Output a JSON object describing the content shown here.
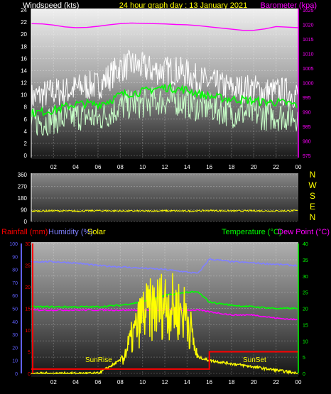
{
  "header": {
    "wind_label": "Windspeed (kts)",
    "date_title": "24 hour graph day : 13 January 2021",
    "baro_label": "Barometer (kpa)"
  },
  "colors": {
    "wind_label": "#ffffff",
    "title": "#ffff00",
    "baro": "#ff00ff",
    "gust": "#ffffff",
    "wind_avg": "#00ff00",
    "wind_speed": "#c8ffc8",
    "wind_dir": "#ffff00",
    "rain": "#ff0000",
    "humidity": "#8080ff",
    "solar": "#ffff00",
    "temperature": "#00ff00",
    "dewpoint": "#ff00ff",
    "axis_left": "#6060ff",
    "axis_mid": "#ff0000",
    "axis_right": "#00ff00"
  },
  "chart_data": [
    {
      "id": "wind",
      "type": "line",
      "ylabel_left": "Windspeed (kts)",
      "ylabel_right": "Barometer (kpa)",
      "ylim_left": [
        0,
        24
      ],
      "ylim_right": [
        975,
        1025
      ],
      "yticks_left": [
        "0",
        "2",
        "4",
        "6",
        "8",
        "10",
        "12",
        "14",
        "16",
        "18",
        "20",
        "22",
        "24"
      ],
      "yticks_right": [
        "975",
        "980",
        "985",
        "990",
        "995",
        "1000",
        "1005",
        "1010",
        "1015",
        "1020",
        "1025"
      ],
      "x_ticks": [
        "02",
        "04",
        "06",
        "08",
        "10",
        "12",
        "14",
        "16",
        "18",
        "20",
        "22",
        "00"
      ],
      "x": [
        0,
        1,
        2,
        3,
        4,
        5,
        6,
        7,
        8,
        9,
        10,
        11,
        12,
        13,
        14,
        15,
        16,
        17,
        18,
        19,
        20,
        21,
        22,
        23,
        24
      ],
      "series": [
        {
          "key": "barometer",
          "axis": "right",
          "values": [
            1020.3,
            1020.2,
            1019.8,
            1019.2,
            1018.9,
            1019.0,
            1019.4,
            1019.9,
            1020.3,
            1020.5,
            1020.4,
            1020.3,
            1020.2,
            1020.0,
            1019.9,
            1019.6,
            1019.2,
            1018.8,
            1018.4,
            1018.0,
            1018.0,
            1018.5,
            1019.3,
            1019.1,
            1018.9
          ]
        },
        {
          "key": "gust",
          "axis": "left",
          "values": [
            9.5,
            10,
            10.5,
            10.5,
            11,
            11.5,
            11.5,
            13,
            14.5,
            15,
            14.5,
            14,
            14,
            14,
            13.5,
            12.5,
            12,
            11.5,
            11,
            11,
            11,
            10.5,
            10.5,
            10.5,
            10
          ]
        },
        {
          "key": "average",
          "axis": "left",
          "values": [
            7,
            7.2,
            7.5,
            8,
            8.5,
            8.5,
            8.5,
            9,
            10,
            10.3,
            10.5,
            11,
            11.2,
            11,
            10.8,
            10.2,
            9.8,
            9.5,
            9.3,
            9.2,
            9,
            8.8,
            8.8,
            8.6,
            8.3
          ]
        },
        {
          "key": "speed",
          "axis": "left",
          "values": [
            5.5,
            5.5,
            6,
            6,
            6.5,
            6.5,
            6,
            7,
            8,
            8.5,
            8.5,
            9,
            9,
            9,
            8.5,
            8,
            8,
            7.5,
            7,
            7,
            7,
            6.5,
            6.5,
            6.5,
            6.5
          ]
        }
      ]
    },
    {
      "id": "direction",
      "type": "line",
      "ylim": [
        0,
        360
      ],
      "yticks": [
        "0",
        "90",
        "180",
        "270",
        "360"
      ],
      "compass": [
        "N",
        "W",
        "S",
        "E",
        "N"
      ],
      "x": [
        0,
        2,
        4,
        6,
        8,
        10,
        12,
        14,
        16,
        18,
        20,
        22,
        24
      ],
      "series": [
        {
          "key": "direction",
          "values": [
            80,
            82,
            80,
            83,
            81,
            80,
            82,
            80,
            84,
            81,
            82,
            81,
            83
          ]
        }
      ]
    },
    {
      "id": "weather",
      "type": "line",
      "labels": {
        "rain": "Rainfall (mm)",
        "humidity": "Humidity (%)",
        "solar": "Solar",
        "temperature": "Temperature (°C)",
        "dewpoint": "Dew Point (°C)",
        "sunrise": "SunRise",
        "sunset": "SunSet"
      },
      "ylim_humidity": [
        0,
        100
      ],
      "ylim_rain": [
        0,
        30
      ],
      "ylim_temp": [
        0,
        40
      ],
      "yticks_humidity": [
        "0",
        "10",
        "20",
        "30",
        "40",
        "50",
        "60",
        "70",
        "80",
        "90",
        "100"
      ],
      "yticks_rain": [
        "0",
        "5",
        "10",
        "15",
        "20",
        "25",
        "30"
      ],
      "yticks_temp": [
        "0",
        "5",
        "10",
        "15",
        "20",
        "25",
        "30",
        "35",
        "40"
      ],
      "x": [
        0,
        2,
        4,
        6,
        8,
        10,
        12,
        14,
        15,
        16,
        18,
        20,
        22,
        24
      ],
      "series": [
        {
          "key": "humidity",
          "values": [
            86,
            86,
            85,
            83,
            82,
            81,
            80,
            78,
            77,
            88,
            86,
            85,
            84,
            83
          ]
        },
        {
          "key": "temperature",
          "values": [
            20.5,
            20.5,
            20.5,
            20.5,
            21,
            22,
            24,
            25,
            25,
            22,
            21,
            20.5,
            20,
            20
          ]
        },
        {
          "key": "dewpoint",
          "values": [
            19.5,
            19.5,
            19.5,
            19.5,
            19.5,
            19.5,
            19.5,
            19.5,
            19.5,
            19,
            18,
            18,
            17,
            16.5
          ]
        },
        {
          "key": "rain",
          "values": [
            1,
            1,
            1,
            1,
            1,
            1,
            1,
            1,
            1,
            5,
            5,
            5,
            5,
            5
          ]
        },
        {
          "key": "solar",
          "values": [
            0,
            0,
            0,
            0,
            4,
            25,
            30,
            25,
            5,
            4,
            3,
            2,
            1,
            0
          ]
        }
      ]
    }
  ]
}
